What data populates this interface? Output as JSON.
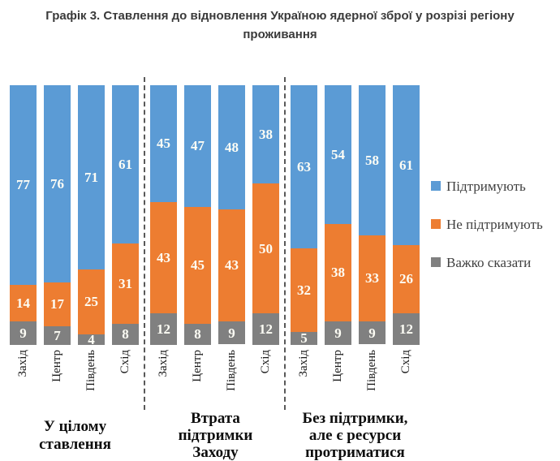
{
  "title": "Графік 3. Ставлення до відновлення Україною ядерної зброї у розрізі регіону проживання",
  "chart_data": {
    "type": "bar",
    "stacked": true,
    "orientation": "vertical",
    "unit": "percent",
    "ylim": [
      0,
      100
    ],
    "grid": false,
    "legend_position": "right",
    "series": [
      {
        "name": "Підтримують",
        "color": "#5B9BD5"
      },
      {
        "name": "Не підтримують",
        "color": "#ED7D31"
      },
      {
        "name": "Важко сказати",
        "color": "#808080"
      }
    ],
    "categories": [
      "Захід",
      "Центр",
      "Південь",
      "Схід"
    ],
    "groups": [
      {
        "label": "У цілому\nставлення",
        "bars": [
          {
            "category": "Захід",
            "values": [
              77,
              14,
              9
            ]
          },
          {
            "category": "Центр",
            "values": [
              76,
              17,
              7
            ]
          },
          {
            "category": "Південь",
            "values": [
              71,
              25,
              4
            ]
          },
          {
            "category": "Схід",
            "values": [
              61,
              31,
              8
            ]
          }
        ]
      },
      {
        "label": "Втрата\nпідтримки\nЗаходу",
        "bars": [
          {
            "category": "Захід",
            "values": [
              45,
              43,
              12
            ]
          },
          {
            "category": "Центр",
            "values": [
              47,
              45,
              8
            ]
          },
          {
            "category": "Південь",
            "values": [
              48,
              43,
              9
            ]
          },
          {
            "category": "Схід",
            "values": [
              38,
              50,
              12
            ]
          }
        ]
      },
      {
        "label": "Без підтримки,\nале є ресурси\nпротриматися",
        "bars": [
          {
            "category": "Захід",
            "values": [
              63,
              32,
              5
            ]
          },
          {
            "category": "Центр",
            "values": [
              54,
              38,
              9
            ]
          },
          {
            "category": "Південь",
            "values": [
              58,
              33,
              9
            ]
          },
          {
            "category": "Схід",
            "values": [
              61,
              26,
              12
            ]
          }
        ]
      }
    ]
  }
}
